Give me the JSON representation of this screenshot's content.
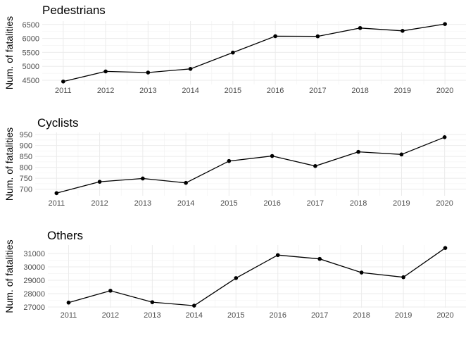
{
  "chart_data": [
    {
      "type": "line",
      "title": "Pedestrians",
      "ylabel": "Num. of fatalities",
      "xlabel": "",
      "x": [
        2011,
        2012,
        2013,
        2014,
        2015,
        2016,
        2017,
        2018,
        2019,
        2020
      ],
      "x_tick_labels": [
        "2011",
        "2012",
        "2013",
        "2014",
        "2015",
        "2016",
        "2017",
        "2018",
        "2019",
        "2020"
      ],
      "values": [
        4457,
        4818,
        4779,
        4910,
        5494,
        6080,
        6075,
        6374,
        6272,
        6516
      ],
      "yticks": [
        4500,
        5000,
        5500,
        6000,
        6500
      ],
      "y_tick_labels": [
        "4500",
        "5000",
        "5500",
        "6000",
        "6500"
      ],
      "ylim": [
        4350,
        6620
      ],
      "grid": true,
      "color": "#000000"
    },
    {
      "type": "line",
      "title": "Cyclists",
      "ylabel": "Num. of fatalities",
      "xlabel": "",
      "x": [
        2011,
        2012,
        2013,
        2014,
        2015,
        2016,
        2017,
        2018,
        2019,
        2020
      ],
      "x_tick_labels": [
        "2011",
        "2012",
        "2013",
        "2014",
        "2015",
        "2016",
        "2017",
        "2018",
        "2019",
        "2020"
      ],
      "values": [
        682,
        734,
        749,
        729,
        829,
        852,
        806,
        871,
        859,
        938
      ],
      "yticks": [
        700,
        750,
        800,
        850,
        900,
        950
      ],
      "y_tick_labels": [
        "700",
        "750",
        "800",
        "850",
        "900",
        "950"
      ],
      "ylim": [
        670,
        960
      ],
      "grid": true,
      "color": "#000000"
    },
    {
      "type": "line",
      "title": "Others",
      "ylabel": "Num. of fatalities",
      "xlabel": "",
      "x": [
        2011,
        2012,
        2013,
        2014,
        2015,
        2016,
        2017,
        2018,
        2019,
        2020
      ],
      "x_tick_labels": [
        "2011",
        "2012",
        "2013",
        "2014",
        "2015",
        "2016",
        "2017",
        "2018",
        "2019",
        "2020"
      ],
      "values": [
        27332,
        28219,
        27363,
        27105,
        29165,
        30881,
        30596,
        29576,
        29229,
        31410
      ],
      "yticks": [
        27000,
        28000,
        29000,
        30000,
        31000
      ],
      "y_tick_labels": [
        "27000",
        "28000",
        "29000",
        "30000",
        "31000"
      ],
      "ylim": [
        26950,
        31630
      ],
      "grid": true,
      "color": "#000000"
    }
  ]
}
